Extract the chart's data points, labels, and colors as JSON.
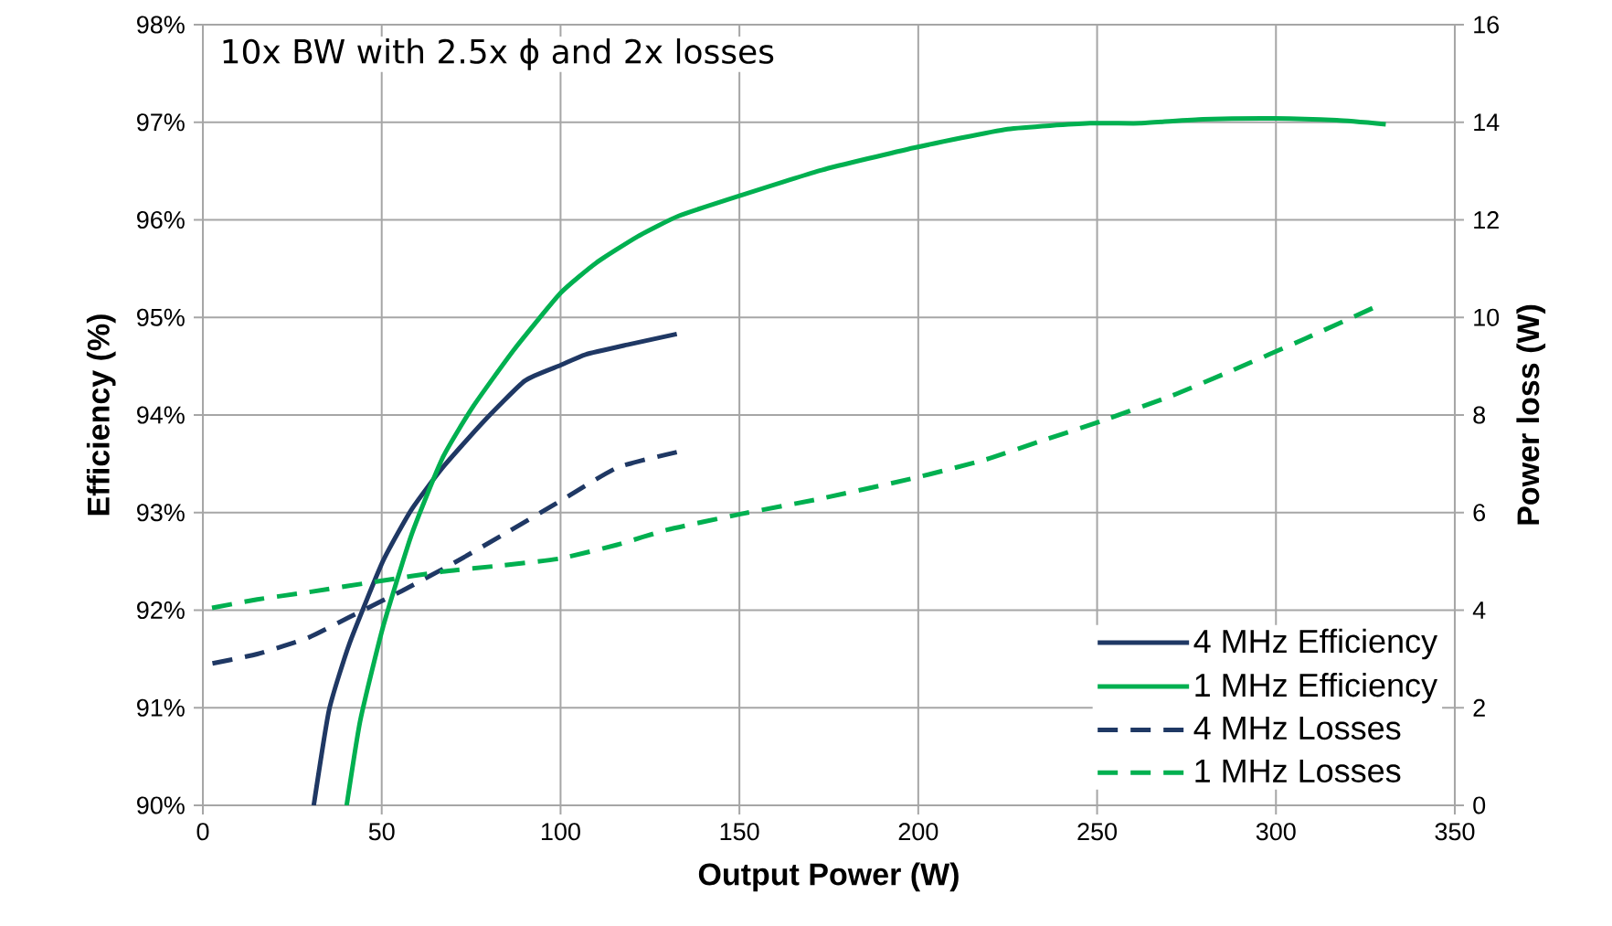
{
  "chart_data": {
    "type": "line",
    "xlabel": "Output Power (W)",
    "ylabel": "Efficiency (%)",
    "y2label": "Power loss (W)",
    "annotations": [
      "10x BW with 2.5x ϕ and 2x losses"
    ],
    "xlim": [
      0,
      350
    ],
    "xticks": [
      0,
      50,
      100,
      150,
      200,
      250,
      300,
      350
    ],
    "ylim": [
      90,
      98
    ],
    "yticks": [
      {
        "value": 90,
        "label": "90%"
      },
      {
        "value": 91,
        "label": "91%"
      },
      {
        "value": 92,
        "label": "92%"
      },
      {
        "value": 93,
        "label": "93%"
      },
      {
        "value": 94,
        "label": "94%"
      },
      {
        "value": 95,
        "label": "95%"
      },
      {
        "value": 96,
        "label": "96%"
      },
      {
        "value": 97,
        "label": "97%"
      },
      {
        "value": 98,
        "label": "98%"
      }
    ],
    "y2lim": [
      0,
      16
    ],
    "y2ticks": [
      0,
      2,
      4,
      6,
      8,
      10,
      12,
      14,
      16
    ],
    "grid": true,
    "legend": "bottom right",
    "series": [
      {
        "name": "4 MHz Efficiency",
        "color": "#1f3864",
        "line_style": "solid",
        "x": [
          31,
          35.3,
          41,
          50.3,
          58.3,
          67,
          78.4,
          90,
          100,
          107,
          118.7,
          132.5
        ],
        "values": [
          90,
          90.98,
          91.66,
          92.5,
          93.03,
          93.46,
          93.93,
          94.35,
          94.51,
          94.62,
          94.72,
          94.83
        ]
      },
      {
        "name": "1 MHz Efficiency",
        "color": "#00b050",
        "line_style": "solid",
        "x": [
          40.2,
          44,
          50.3,
          58.3,
          67,
          75.6,
          87,
          100,
          110,
          121.6,
          133,
          150.3,
          173,
          199,
          225,
          248,
          262,
          279.6,
          299.7,
          317,
          330.7
        ],
        "values": [
          90,
          90.87,
          91.82,
          92.77,
          93.56,
          94.09,
          94.67,
          95.25,
          95.56,
          95.83,
          96.04,
          96.25,
          96.51,
          96.74,
          96.93,
          96.99,
          96.99,
          97.03,
          97.04,
          97.02,
          96.98
        ]
      },
      {
        "name": "4 MHz Losses",
        "color": "#1f3864",
        "line_style": "dashed",
        "axis": "y2",
        "x": [
          0,
          15.2,
          29.6,
          41,
          55.5,
          70,
          84,
          98.6,
          115.8,
          132.5
        ],
        "values": [
          2.87,
          3.1,
          3.44,
          3.86,
          4.39,
          4.96,
          5.55,
          6.18,
          6.92,
          7.24
        ]
      },
      {
        "name": "1 MHz Losses",
        "color": "#00b050",
        "line_style": "dashed",
        "axis": "y2",
        "x": [
          0,
          15.2,
          29.6,
          49.7,
          67,
          84,
          100,
          115.8,
          130,
          150.3,
          173,
          199,
          219,
          233.6,
          251,
          271,
          288,
          308,
          327
        ],
        "values": [
          4.01,
          4.22,
          4.37,
          4.6,
          4.79,
          4.92,
          5.06,
          5.34,
          5.65,
          5.97,
          6.29,
          6.71,
          7.09,
          7.45,
          7.87,
          8.4,
          8.92,
          9.56,
          10.19
        ]
      }
    ]
  }
}
